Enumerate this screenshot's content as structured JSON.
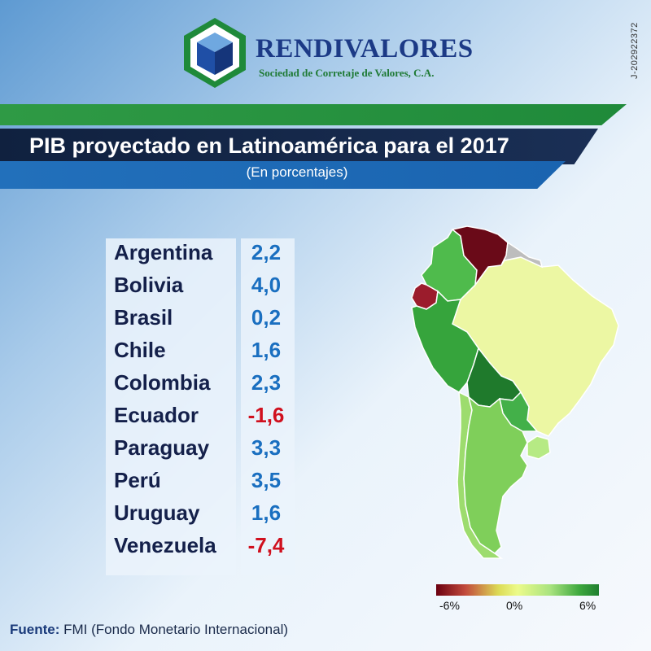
{
  "brand": {
    "name": "RENDIVALORES",
    "tagline": "Sociedad de Corretaje de Valores, C.A.",
    "registration": "J-202922372"
  },
  "header": {
    "title": "PIB proyectado en Latinoamérica para el 2017",
    "subtitle": "(En porcentajes)"
  },
  "colors": {
    "positive_value": "#1a6fc0",
    "negative_value": "#d0101e",
    "green_band": "#2f9a45",
    "navy_band": "#10213f",
    "blue_band": "#2270bb"
  },
  "chart_data": {
    "type": "table",
    "title": "PIB proyectado en Latinoamérica para el 2017",
    "subtitle": "(En porcentajes)",
    "categories": [
      "Argentina",
      "Bolivia",
      "Brasil",
      "Chile",
      "Colombia",
      "Ecuador",
      "Paraguay",
      "Perú",
      "Uruguay",
      "Venezuela"
    ],
    "values": [
      2.2,
      4.0,
      0.2,
      1.6,
      2.3,
      -1.6,
      3.3,
      3.5,
      1.6,
      -7.4
    ],
    "value_labels": [
      "2,2",
      "4,0",
      "0,2",
      "1,6",
      "2,3",
      "-1,6",
      "3,3",
      "3,5",
      "1,6",
      "-7,4"
    ],
    "map": {
      "type": "choropleth",
      "region": "South America",
      "scale_min": -6,
      "scale_max": 6,
      "legend_labels": [
        "-6%",
        "0%",
        "6%"
      ],
      "legend_placement": "bottom-right"
    }
  },
  "source": {
    "label": "Fuente:",
    "text": "FMI (Fondo Monetario Internacional)"
  }
}
